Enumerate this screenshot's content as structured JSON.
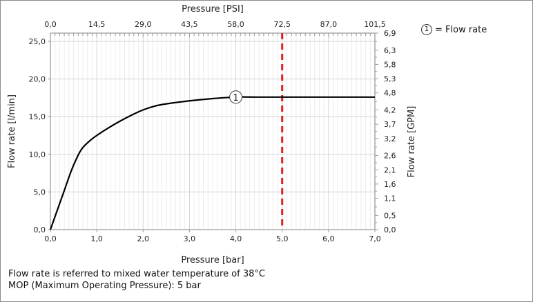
{
  "chart_data": {
    "type": "line",
    "title": "",
    "xlabel": "Pressure [bar]",
    "ylabel": "Flow rate [l/min]",
    "x2label": "Pressure [PSI]",
    "y2label": "Flow rate [GPM]",
    "xlim": [
      0,
      7
    ],
    "ylim": [
      0,
      26.1
    ],
    "xticks": [
      0,
      1,
      2,
      3,
      4,
      5,
      6,
      7
    ],
    "xtick_labels": [
      "0,0",
      "1,0",
      "2,0",
      "3,0",
      "4,0",
      "5,0",
      "6,0",
      "7,0"
    ],
    "yticks": [
      0,
      5,
      10,
      15,
      20,
      25
    ],
    "ytick_labels": [
      "0,0",
      "5,0",
      "10,0",
      "15,0",
      "20,0",
      "25,0"
    ],
    "x2tick_labels": [
      "0,0",
      "14,5",
      "29,0",
      "43,5",
      "58,0",
      "72,5",
      "87,0",
      "101,5"
    ],
    "y2ticks_gpm": [
      0.0,
      0.5,
      1.1,
      1.6,
      2.1,
      2.6,
      3.2,
      3.7,
      4.2,
      4.8,
      5.3,
      5.8,
      6.3,
      6.9
    ],
    "y2tick_labels": [
      "0,0",
      "0,5",
      "1,1",
      "1,6",
      "2,1",
      "2,6",
      "3,2",
      "3,7",
      "4,2",
      "4,8",
      "5,3",
      "5,8",
      "6,3",
      "6,9"
    ],
    "grid": true,
    "series": [
      {
        "name": "Flow rate",
        "marker_label": "1",
        "color": "#000000",
        "x": [
          0,
          0.15,
          0.3,
          0.45,
          0.6,
          0.7,
          0.85,
          1.0,
          1.25,
          1.5,
          1.75,
          2.0,
          2.25,
          2.5,
          3.0,
          3.5,
          4.0,
          4.5,
          5.0,
          6.0,
          7.0
        ],
        "y": [
          0,
          2.6,
          5.2,
          7.8,
          9.9,
          10.9,
          11.8,
          12.5,
          13.5,
          14.4,
          15.2,
          15.9,
          16.4,
          16.7,
          17.1,
          17.4,
          17.6,
          17.6,
          17.6,
          17.6,
          17.6
        ]
      }
    ],
    "annotations": [
      {
        "type": "vline",
        "x": 5.0,
        "style": "dashed",
        "color": "#e02020",
        "meaning": "MOP"
      },
      {
        "type": "series-marker",
        "text": "1",
        "x": 4.0,
        "y": 17.6
      }
    ],
    "legend": {
      "placement": "top-right",
      "entries": [
        {
          "symbol": "1",
          "label": "= Flow rate"
        }
      ]
    }
  },
  "notes": {
    "line1": "Flow rate is referred to mixed water temperature of 38°C",
    "line2": "MOP (Maximum Operating Pressure): 5 bar"
  }
}
